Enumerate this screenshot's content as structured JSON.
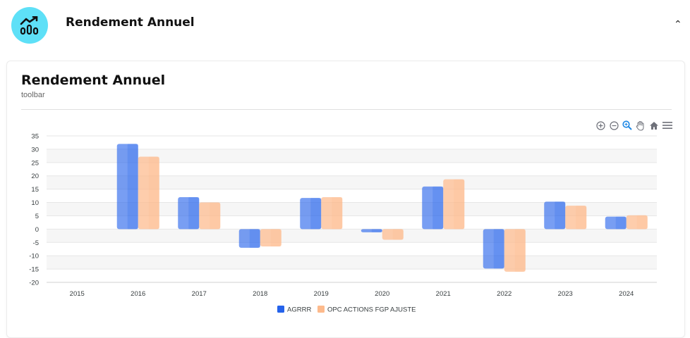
{
  "header": {
    "title": "Rendement Annuel",
    "collapse_icon": "chevron-up-icon"
  },
  "card": {
    "title": "Rendement Annuel",
    "subtitle": "toolbar"
  },
  "toolbar": [
    "zoom-in-icon",
    "zoom-out-icon",
    "zoom-selection-icon",
    "pan-hand-icon",
    "reset-home-icon",
    "menu-icon"
  ],
  "colors": {
    "logo_bg": "#5ee0f7",
    "series1": "#2563eb",
    "series2": "#fdba8c"
  },
  "chart_data": {
    "type": "bar",
    "title": "",
    "xlabel": "",
    "ylabel": "",
    "categories": [
      "2015",
      "2016",
      "2017",
      "2018",
      "2019",
      "2020",
      "2021",
      "2022",
      "2023",
      "2024"
    ],
    "series": [
      {
        "name": "AGRRR",
        "values": [
          null,
          32,
          12,
          -7,
          11.7,
          -1.2,
          16,
          -14.8,
          10.3,
          4.7
        ]
      },
      {
        "name": "OPC ACTIONS FGP AJUSTE",
        "values": [
          null,
          27.2,
          10,
          -6.5,
          12,
          -4,
          18.7,
          -16,
          8.8,
          5.2
        ]
      }
    ],
    "ylim": [
      -20,
      35
    ],
    "yticks": [
      "35",
      "30",
      "25",
      "20",
      "15",
      "10",
      "5",
      "0",
      "-5",
      "-10",
      "-15",
      "-20"
    ],
    "grid": true,
    "legend": "bottom-center"
  }
}
